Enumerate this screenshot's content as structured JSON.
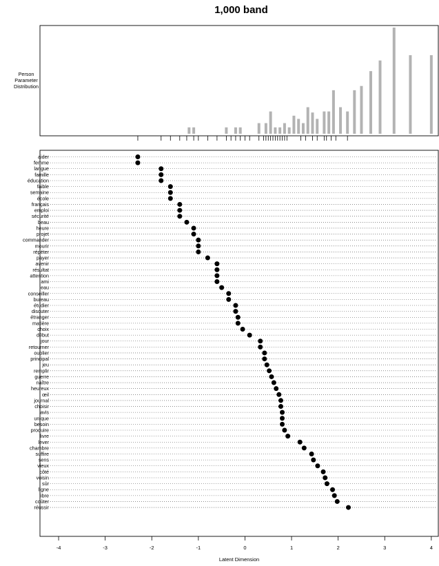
{
  "chart_data": {
    "type": "scatter",
    "title": "1,000 band",
    "histogram_label": [
      "Person",
      "Parameter",
      "Distribution"
    ],
    "xlabel": "Latent Dimension",
    "xlim": [
      -4.4,
      4.15
    ],
    "x_ticks": [
      -4,
      -3,
      -2,
      -1,
      0,
      1,
      2,
      3,
      4
    ],
    "person_distribution": {
      "x": [
        -1.2,
        -1.1,
        -0.4,
        -0.2,
        -0.1,
        0.3,
        0.45,
        0.55,
        0.65,
        0.75,
        0.85,
        0.95,
        1.05,
        1.15,
        1.25,
        1.35,
        1.45,
        1.55,
        1.7,
        1.8,
        1.9,
        2.05,
        2.2,
        2.35,
        2.5,
        2.7,
        2.9,
        3.2,
        3.55,
        4.0
      ],
      "heights": [
        6,
        6,
        6,
        6,
        6,
        10,
        10,
        21,
        6,
        6,
        10,
        6,
        17,
        14,
        10,
        25,
        20,
        14,
        21,
        21,
        41,
        25,
        21,
        41,
        45,
        59,
        69,
        100,
        74,
        74
      ]
    },
    "item_ticks": [
      -2.3,
      -1.8,
      -1.6,
      -1.4,
      -1.25,
      -1.1,
      -1.0,
      -0.8,
      -0.6,
      -0.4,
      -0.3,
      -0.2,
      -0.1,
      0.0,
      0.1,
      0.3,
      0.4,
      0.45,
      0.5,
      0.55,
      0.6,
      0.65,
      0.7,
      0.75,
      0.8,
      0.85,
      0.9,
      1.2,
      1.3,
      1.45,
      1.55,
      1.7,
      1.75,
      1.85,
      1.95,
      2.2
    ],
    "items": [
      {
        "label": "aider",
        "value": -2.3
      },
      {
        "label": "femme",
        "value": -2.3
      },
      {
        "label": "langue",
        "value": -1.8
      },
      {
        "label": "famille",
        "value": -1.8
      },
      {
        "label": "éducation",
        "value": -1.8
      },
      {
        "label": "faible",
        "value": -1.6
      },
      {
        "label": "semaine",
        "value": -1.6
      },
      {
        "label": "école",
        "value": -1.6
      },
      {
        "label": "français",
        "value": -1.4
      },
      {
        "label": "emploi",
        "value": -1.4
      },
      {
        "label": "sécurité",
        "value": -1.4
      },
      {
        "label": "beau",
        "value": -1.25
      },
      {
        "label": "heure",
        "value": -1.1
      },
      {
        "label": "projet",
        "value": -1.1
      },
      {
        "label": "commander",
        "value": -1.0
      },
      {
        "label": "mourir",
        "value": -1.0
      },
      {
        "label": "répéter",
        "value": -1.0
      },
      {
        "label": "payer",
        "value": -0.8
      },
      {
        "label": "avenir",
        "value": -0.6
      },
      {
        "label": "résultat",
        "value": -0.6
      },
      {
        "label": "attention",
        "value": -0.6
      },
      {
        "label": "ami",
        "value": -0.6
      },
      {
        "label": "eau",
        "value": -0.5
      },
      {
        "label": "conseiller",
        "value": -0.35
      },
      {
        "label": "bureau",
        "value": -0.35
      },
      {
        "label": "étudier",
        "value": -0.2
      },
      {
        "label": "discuter",
        "value": -0.2
      },
      {
        "label": "étranger",
        "value": -0.15
      },
      {
        "label": "matière",
        "value": -0.15
      },
      {
        "label": "choix",
        "value": -0.05
      },
      {
        "label": "début",
        "value": 0.1
      },
      {
        "label": "jour",
        "value": 0.33
      },
      {
        "label": "retourner",
        "value": 0.33
      },
      {
        "label": "oublier",
        "value": 0.42
      },
      {
        "label": "principal",
        "value": 0.42
      },
      {
        "label": "jeu",
        "value": 0.47
      },
      {
        "label": "remplir",
        "value": 0.52
      },
      {
        "label": "guerre",
        "value": 0.57
      },
      {
        "label": "naître",
        "value": 0.62
      },
      {
        "label": "heureux",
        "value": 0.67
      },
      {
        "label": "œil",
        "value": 0.73
      },
      {
        "label": "journal",
        "value": 0.77
      },
      {
        "label": "choisir",
        "value": 0.77
      },
      {
        "label": "avis",
        "value": 0.8
      },
      {
        "label": "unique",
        "value": 0.8
      },
      {
        "label": "besoin",
        "value": 0.8
      },
      {
        "label": "produire",
        "value": 0.85
      },
      {
        "label": "livre",
        "value": 0.92
      },
      {
        "label": "lever",
        "value": 1.18
      },
      {
        "label": "chambre",
        "value": 1.27
      },
      {
        "label": "suffire",
        "value": 1.43
      },
      {
        "label": "sens",
        "value": 1.47
      },
      {
        "label": "vieux",
        "value": 1.56
      },
      {
        "label": "côté",
        "value": 1.68
      },
      {
        "label": "voisin",
        "value": 1.72
      },
      {
        "label": "sûr",
        "value": 1.76
      },
      {
        "label": "ligne",
        "value": 1.88
      },
      {
        "label": "libre",
        "value": 1.92
      },
      {
        "label": "coûter",
        "value": 1.98
      },
      {
        "label": "réussir",
        "value": 2.22
      }
    ]
  }
}
